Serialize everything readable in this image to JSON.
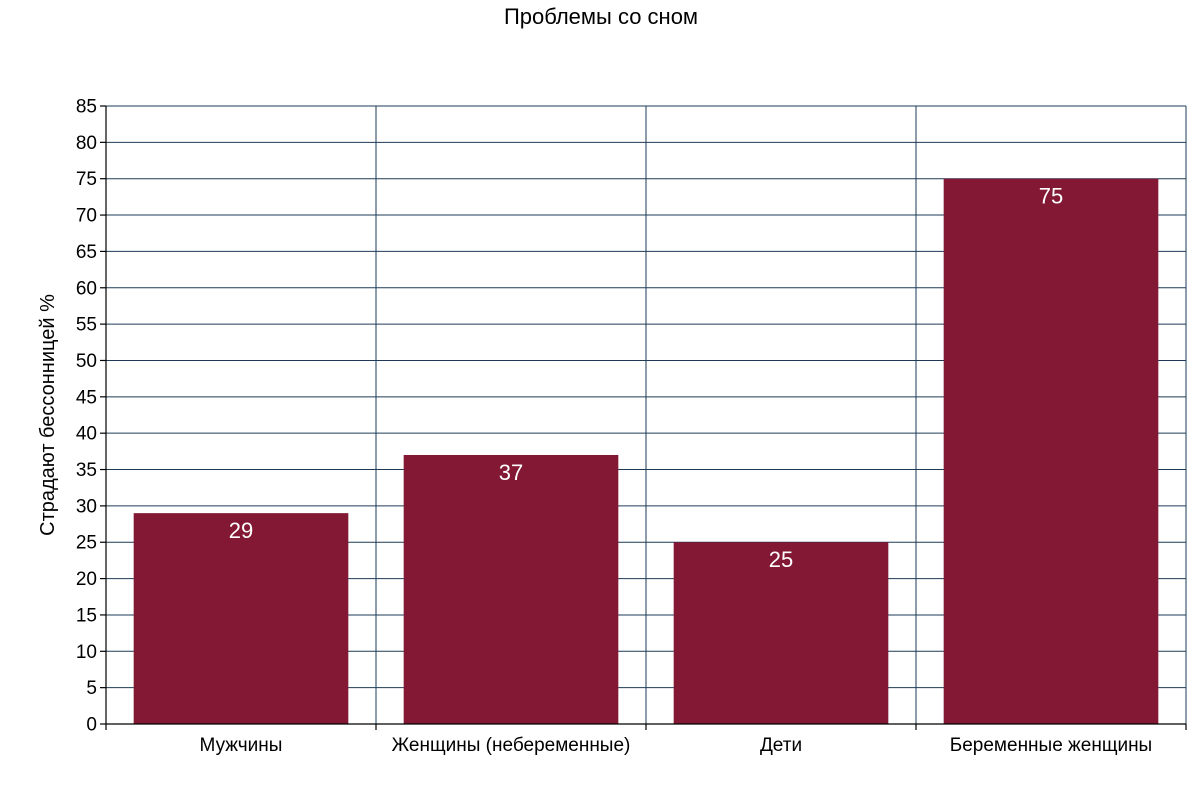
{
  "chart_data": {
    "type": "bar",
    "title": "Проблемы со сном",
    "xlabel": "",
    "ylabel": "Страдают бессонницей %",
    "categories": [
      "Мужчины",
      "Женщины (небеременные)",
      "Дети",
      "Беременные женщины"
    ],
    "values": [
      29,
      37,
      25,
      75
    ],
    "data_labels": [
      "29",
      "37",
      "25",
      "75"
    ],
    "ylim": [
      0,
      85
    ],
    "yticks": [
      0,
      5,
      10,
      15,
      20,
      25,
      30,
      35,
      40,
      45,
      50,
      55,
      60,
      65,
      70,
      75,
      80,
      85
    ],
    "grid": true,
    "legend": "none",
    "colors": {
      "bar": "#821834",
      "grid": "#1d3b57",
      "data_label": "#ffffff"
    }
  }
}
